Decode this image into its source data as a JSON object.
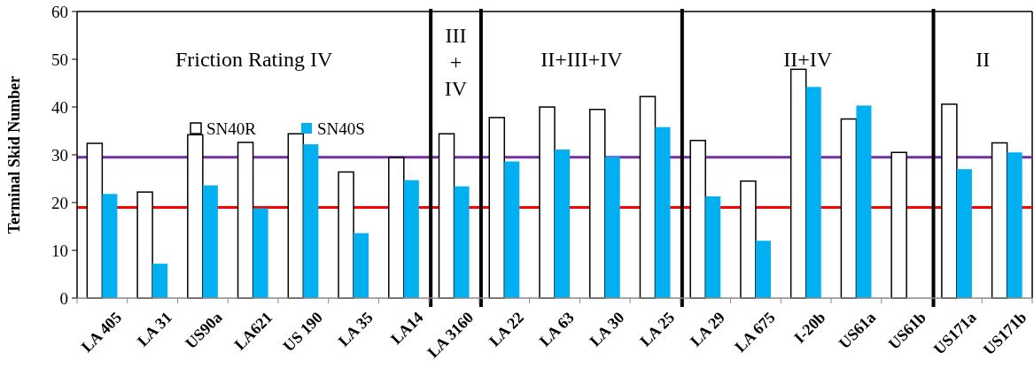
{
  "chart_data": {
    "type": "bar",
    "ylabel": "Terminal Skid Number",
    "categories": [
      "LA 405",
      "LA 31",
      "US90a",
      "LA621",
      "US 190",
      "LA 35",
      "LA14",
      "LA 3160",
      "LA 22",
      "LA 63",
      "LA 30",
      "LA 25",
      "LA 29",
      "LA 675",
      "I-20b",
      "US61a",
      "US61b",
      "US171a",
      "US171b"
    ],
    "series": [
      {
        "name": "SN40R",
        "color": "#ffffff",
        "values": [
          32.4,
          22.2,
          34.2,
          32.6,
          34.4,
          26.4,
          29.4,
          34.4,
          37.8,
          40,
          39.5,
          42.2,
          33,
          24.5,
          47.9,
          37.5,
          30.5,
          40.6,
          32.5
        ]
      },
      {
        "name": "SN40S",
        "color": "#00b0f0",
        "values": [
          21.8,
          7.2,
          23.6,
          18.8,
          32.2,
          13.6,
          24.7,
          23.4,
          28.6,
          31.1,
          29.6,
          35.8,
          21.3,
          12,
          44.2,
          40.3,
          null,
          27,
          30.5
        ]
      }
    ],
    "ylim": [
      0,
      60
    ],
    "yticks": [
      0,
      10,
      20,
      30,
      40,
      50,
      60
    ],
    "ref_lines": [
      {
        "axis": "y",
        "value": 29.5,
        "color": "#7030a0"
      },
      {
        "axis": "y",
        "value": 19,
        "color": "#ff0000"
      }
    ],
    "annotations": [
      "Friction Rating  IV",
      "III\n+\nIV",
      "II+III+IV",
      "II+IV",
      "II"
    ],
    "legend": "top left"
  }
}
